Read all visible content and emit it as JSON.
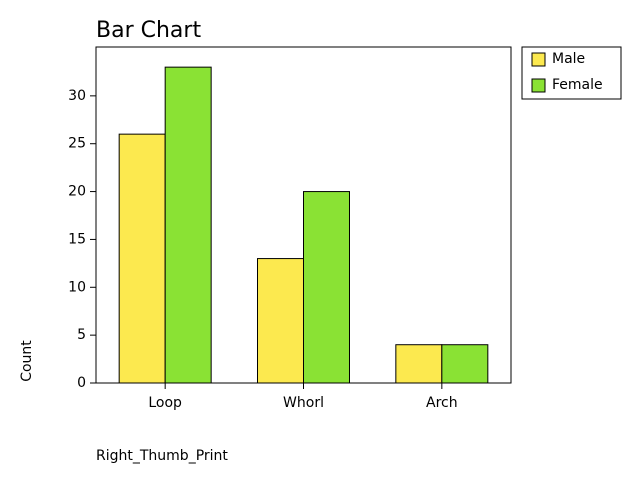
{
  "chart_data": {
    "type": "bar",
    "title": "Bar Chart",
    "x_label": "Right_Thumb_Print",
    "y_label": "Count",
    "categories": [
      "Loop",
      "Whorl",
      "Arch"
    ],
    "series": [
      {
        "name": "Male",
        "color": "#fce94f",
        "values": [
          26,
          13,
          4
        ]
      },
      {
        "name": "Female",
        "color": "#8ae234",
        "values": [
          33,
          20,
          4
        ]
      }
    ],
    "ylim": [
      0,
      35
    ],
    "yticks": [
      0,
      5,
      10,
      15,
      20,
      25,
      30
    ],
    "grid": false,
    "legend": "outside-right"
  }
}
